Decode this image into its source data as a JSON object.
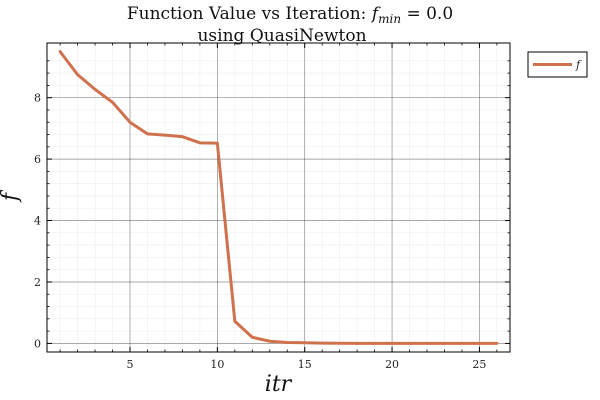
{
  "chart_data": {
    "type": "line",
    "title_main": "Function Value vs Iteration: ",
    "title_fvar": "f",
    "title_sub": "min",
    "title_value": " =   0.0",
    "subtitle": "using QuasiNewton",
    "xlabel": "itr",
    "ylabel": "f",
    "xlim": [
      0.25,
      26.75
    ],
    "ylim": [
      -0.28,
      9.78
    ],
    "xticks": [
      5,
      10,
      15,
      20,
      25
    ],
    "yticks": [
      0,
      2,
      4,
      6,
      8
    ],
    "grid": true,
    "legend_position": "outside-top-right",
    "series": [
      {
        "name": "f",
        "color": "#d0714e",
        "x": [
          1,
          2,
          3,
          4,
          5,
          6,
          7,
          8,
          9,
          10,
          11,
          12,
          13,
          14,
          15,
          16,
          17,
          18,
          19,
          20,
          21,
          22,
          23,
          24,
          25,
          26
        ],
        "y": [
          9.5,
          8.75,
          8.27,
          7.85,
          7.2,
          6.82,
          6.78,
          6.73,
          6.53,
          6.52,
          0.72,
          0.2,
          0.07,
          0.03,
          0.02,
          0.01,
          0.005,
          0.002,
          0.001,
          0.0,
          0.0,
          0.0,
          0.0,
          0.0,
          0.0,
          0.0
        ]
      }
    ]
  }
}
